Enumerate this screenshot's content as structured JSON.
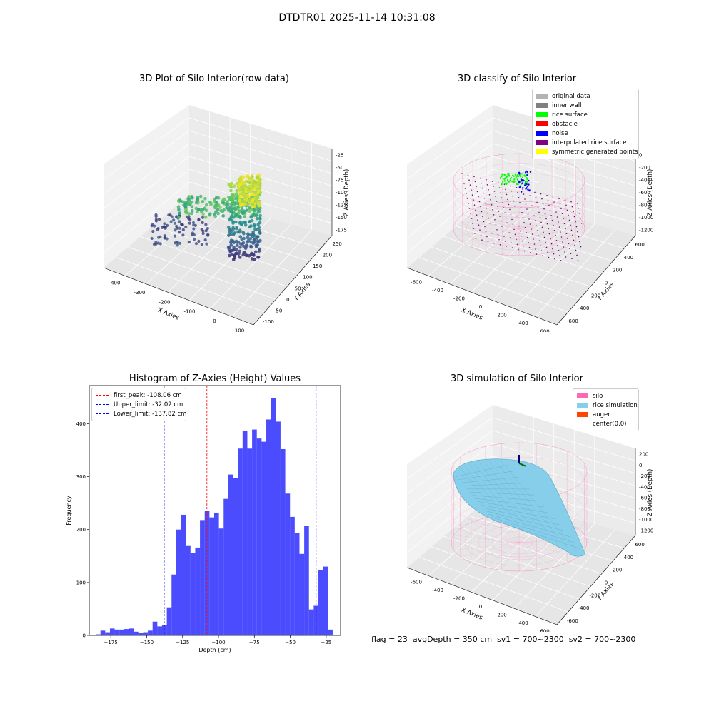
{
  "suptitle": "DTDTR01 2025-11-14 10:31:08",
  "panels": {
    "raw": {
      "title": "3D Plot of Silo Interior(row data)",
      "xlabel": "X Axies",
      "ylabel": "Y Axies",
      "zlabel": "Z Axies (Depth)",
      "xticks": [
        "-400",
        "-300",
        "-200",
        "-100",
        "0",
        "100"
      ],
      "yticks": [
        "-100",
        "-50",
        "0",
        "50",
        "100",
        "150",
        "200",
        "250"
      ],
      "zticks": [
        "-25",
        "-50",
        "-75",
        "-100",
        "-125",
        "-150",
        "-175"
      ]
    },
    "classify": {
      "title": "3D classify of Silo Interior",
      "xlabel": "X Axies",
      "ylabel": "Y Axies",
      "zlabel": "Z Axies (Depth)",
      "xticks": [
        "-600",
        "-400",
        "-200",
        "0",
        "200",
        "400",
        "600"
      ],
      "yticks": [
        "-600",
        "-400",
        "-200",
        "0",
        "200",
        "400",
        "600"
      ],
      "zticks": [
        "0",
        "-200",
        "-400",
        "-600",
        "-800",
        "-1000",
        "-1200"
      ],
      "ztick_top": "200",
      "legend": [
        {
          "label": "original data",
          "color": "#b3b3b3"
        },
        {
          "label": "inner wall",
          "color": "#808080"
        },
        {
          "label": "rice surface",
          "color": "#00ff00"
        },
        {
          "label": "obstacle",
          "color": "#ff0000"
        },
        {
          "label": "noise",
          "color": "#0000ff"
        },
        {
          "label": "interpolated rice surface",
          "color": "#800080"
        },
        {
          "label": "symmetric generated points",
          "color": "#ffff00"
        }
      ]
    },
    "simulation": {
      "title": "3D simulation of Silo Interior",
      "xlabel": "X Axies",
      "ylabel": "Y Axies",
      "zlabel": "Z Axies (Depth)",
      "xticks": [
        "-600",
        "-400",
        "-200",
        "0",
        "200",
        "400",
        "600"
      ],
      "yticks": [
        "-600",
        "-400",
        "-200",
        "0",
        "200",
        "400",
        "600"
      ],
      "zticks": [
        "200",
        "0",
        "-200",
        "-400",
        "-600",
        "-800",
        "-1000",
        "-1200"
      ],
      "legend": [
        {
          "label": "silo",
          "color": "#ff69b4"
        },
        {
          "label": "rice simulation",
          "color": "#87ceeb"
        },
        {
          "label": "auger",
          "color": "#ff4500"
        },
        {
          "label": "center(0,0)",
          "color": "#ffffff"
        }
      ]
    }
  },
  "chart_data": {
    "type": "bar",
    "title": "Histogram of Z-Axies (Height) Values",
    "xlabel": "Depth (cm)",
    "ylabel": "Frequency",
    "xlim": [
      -190,
      -15
    ],
    "ylim": [
      0,
      472
    ],
    "xticks": [
      -175,
      -150,
      -125,
      -100,
      -75,
      -50,
      -25
    ],
    "yticks": [
      0,
      100,
      200,
      300,
      400
    ],
    "bin_width": 3.3,
    "bin_edges_start": -185.5,
    "values": [
      2,
      9,
      6,
      13,
      11,
      11,
      12,
      13,
      7,
      5,
      6,
      9,
      26,
      17,
      19,
      53,
      115,
      200,
      228,
      169,
      156,
      166,
      218,
      235,
      223,
      232,
      202,
      258,
      304,
      298,
      353,
      387,
      353,
      389,
      372,
      366,
      408,
      449,
      404,
      352,
      268,
      224,
      193,
      154,
      207,
      49,
      56,
      124,
      130,
      11
    ],
    "bar_color": "#0000ff",
    "lines": [
      {
        "label": "first_peak: -108.06 cm",
        "value": -108.06,
        "color": "#ff0000"
      },
      {
        "label": "Upper_limit: -32.02 cm",
        "value": -32.02,
        "color": "#0000ff"
      },
      {
        "label": "Lower_limit: -137.82 cm",
        "value": -137.82,
        "color": "#0000ff"
      }
    ]
  },
  "footer": "flag = 23  avgDepth = 350 cm  sv1 = 700~2300  sv2 = 700~2300"
}
